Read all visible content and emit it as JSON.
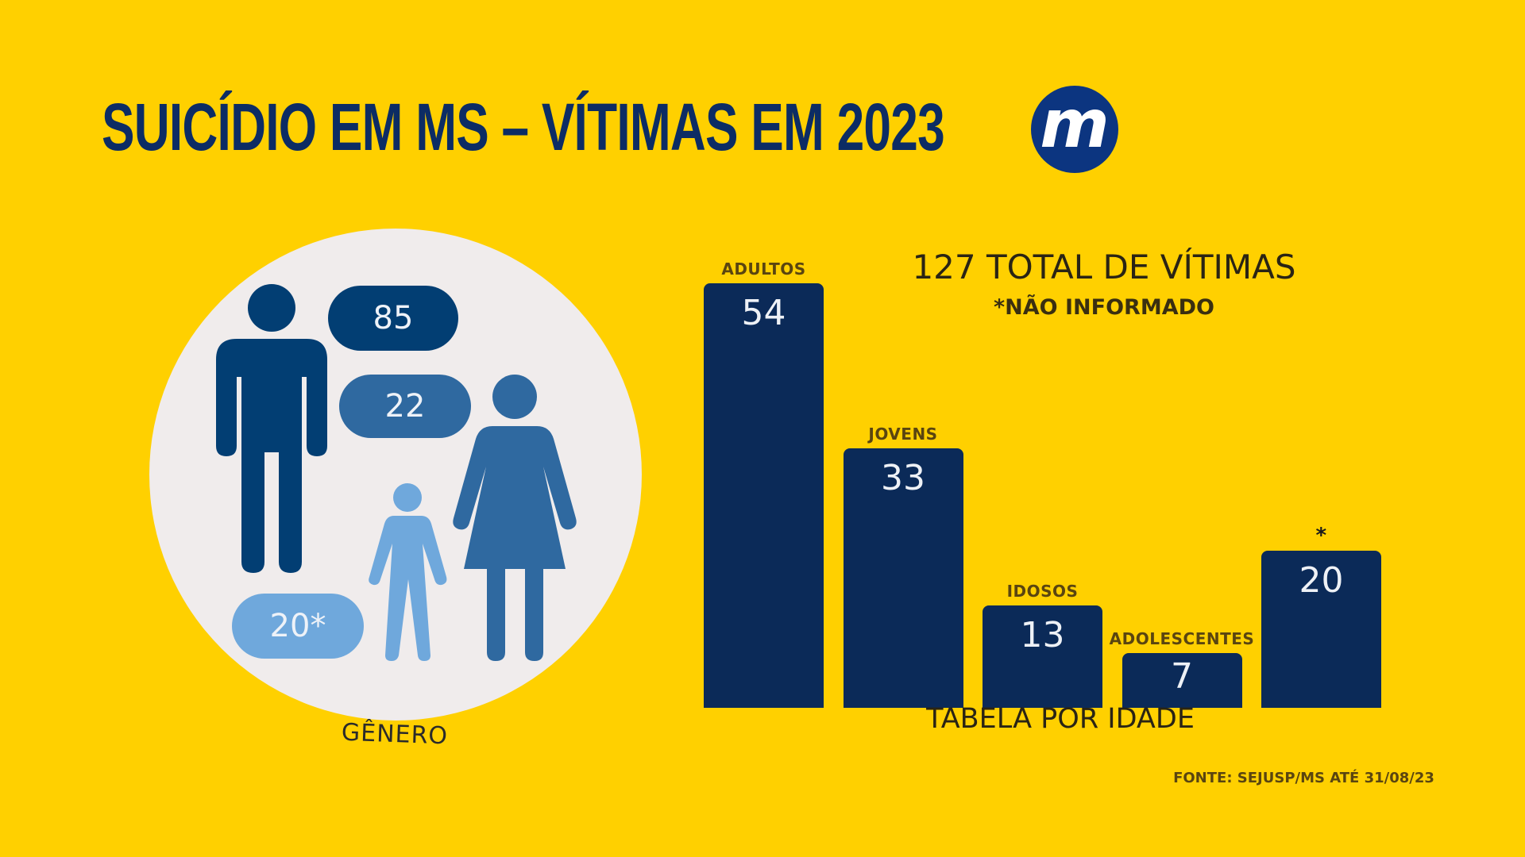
{
  "header": {
    "title": "SUICÍDIO EM MS – VÍTIMAS EM 2023",
    "logo_letter": "m"
  },
  "colors": {
    "background": "#ffd000",
    "navy": "#0b2a58",
    "men": "#023e73",
    "women": "#2f69a0",
    "unknown": "#6fa8dc",
    "circle": "#f0ecec"
  },
  "gender": {
    "label": "GÊNERO",
    "items": [
      {
        "name": "men",
        "value": "85",
        "icon": "man-icon"
      },
      {
        "name": "women",
        "value": "22",
        "icon": "woman-icon"
      },
      {
        "name": "unknown",
        "value": "20*",
        "icon": "child-icon"
      }
    ]
  },
  "chart_data": {
    "type": "bar",
    "title": "127 TOTAL DE VÍTIMAS",
    "subtitle": "*NÃO INFORMADO",
    "xlabel": "TABELA POR IDADE",
    "ylabel": "",
    "categories": [
      "ADULTOS",
      "JOVENS",
      "IDOSOS",
      "ADOLESCENTES",
      "*"
    ],
    "values": [
      54,
      33,
      13,
      7,
      20
    ],
    "ylim": [
      0,
      54
    ],
    "grid": false,
    "legend": "none"
  },
  "footer": {
    "source": "FONTE: SEJUSP/MS ATÉ 31/08/23"
  }
}
